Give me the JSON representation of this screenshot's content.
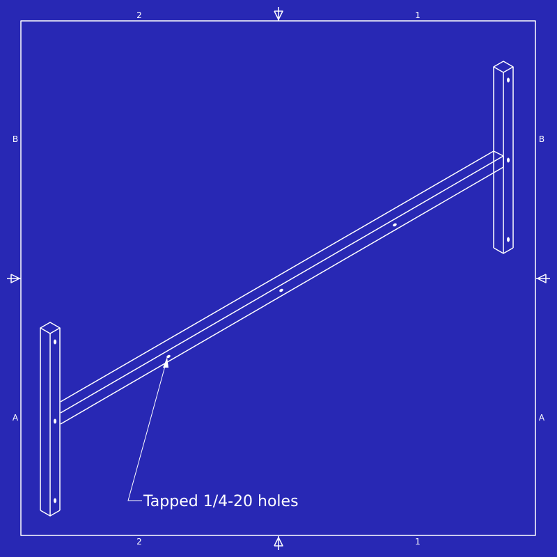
{
  "zones": {
    "top_left": "2",
    "top_right": "1",
    "bottom_left": "2",
    "bottom_right": "1",
    "left_upper": "B",
    "left_lower": "A",
    "right_upper": "B",
    "right_lower": "A"
  },
  "callout": {
    "text": "Tapped 1/4-20 holes"
  },
  "colors": {
    "background": "#2828b4",
    "line": "#ffffff"
  }
}
